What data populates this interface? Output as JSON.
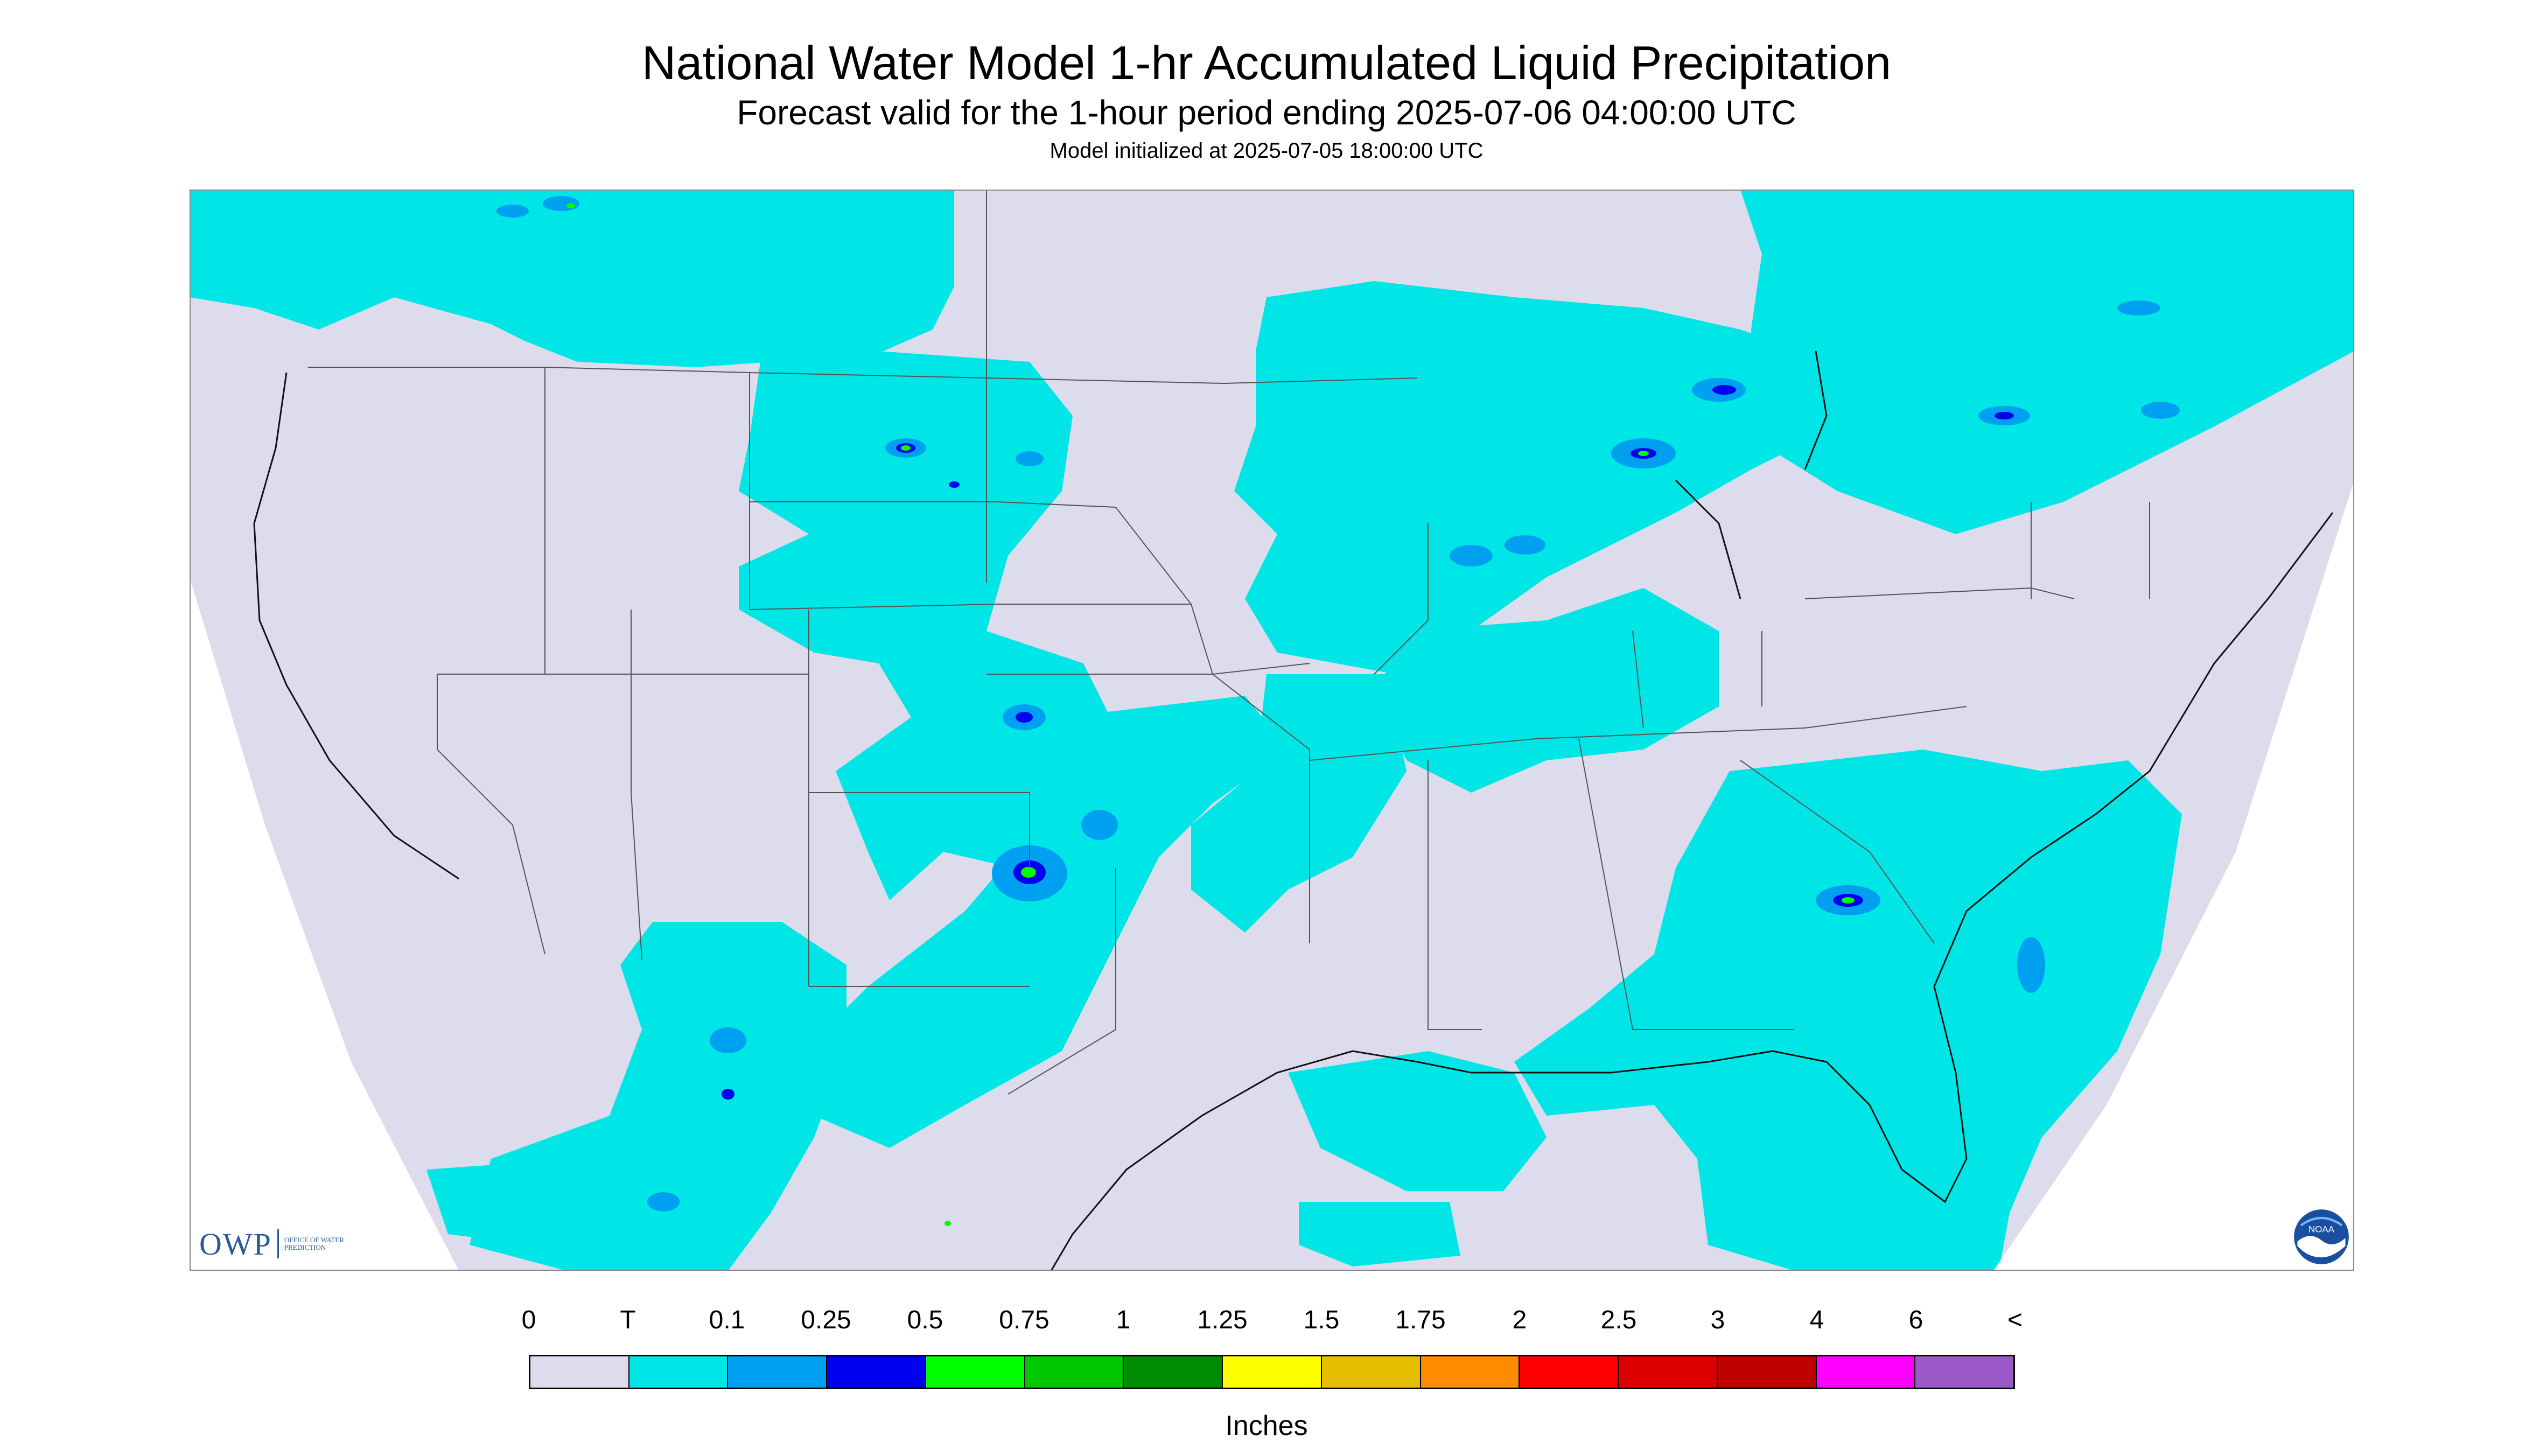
{
  "header": {
    "title": "National Water Model 1-hr Accumulated Liquid Precipitation",
    "subtitle": "Forecast valid for the 1-hour period ending 2025-07-06 04:00:00 UTC",
    "init": "Model initialized at 2025-07-05 18:00:00 UTC"
  },
  "map": {
    "background_color": "#dcdcec",
    "outside_color": "#ffffff",
    "border_color": "#000000",
    "main_precip_color": "#00e6e6",
    "region": "CONUS"
  },
  "legend": {
    "labels": [
      "0",
      "T",
      "0.1",
      "0.25",
      "0.5",
      "0.75",
      "1",
      "1.25",
      "1.5",
      "1.75",
      "2",
      "2.5",
      "3",
      "4",
      "6",
      "<"
    ],
    "colors": [
      "#dcdcec",
      "#00e6e6",
      "#00a0f0",
      "#0000f0",
      "#00ff00",
      "#00c800",
      "#008c00",
      "#ffff00",
      "#e6be00",
      "#ff8c00",
      "#ff0000",
      "#dc0000",
      "#be0000",
      "#ff00ff",
      "#9b59c8"
    ],
    "units": "Inches"
  },
  "logos": {
    "owp_text": "OWP",
    "owp_subtext": "OFFICE OF WATER PREDICTION",
    "noaa_text": "NOAA"
  }
}
